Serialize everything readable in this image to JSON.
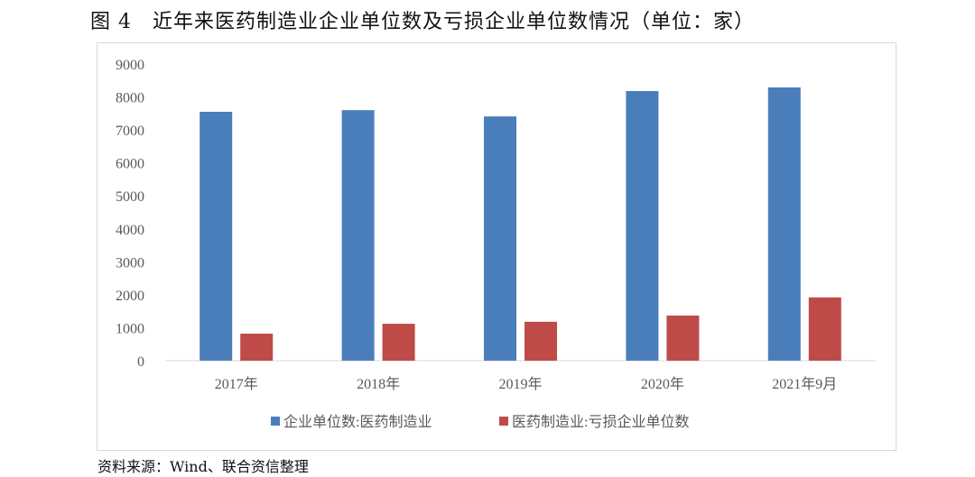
{
  "title": "图 4　近年来医药制造业企业单位数及亏损企业单位数情况（单位：家）",
  "source": "资料来源：Wind、联合资信整理",
  "chart_data": {
    "type": "bar",
    "title": "",
    "categories": [
      "2017年",
      "2018年",
      "2019年",
      "2020年",
      "2021年9月"
    ],
    "series": [
      {
        "name": "企业单位数:医药制造业",
        "color": "#4a7ebb",
        "values": [
          7550,
          7600,
          7410,
          8180,
          8290
        ]
      },
      {
        "name": "医药制造业:亏损企业单位数",
        "color": "#be4b48",
        "values": [
          820,
          1120,
          1180,
          1370,
          1920
        ]
      }
    ],
    "ylim": [
      0,
      9000
    ],
    "yticks": [
      0,
      1000,
      2000,
      3000,
      4000,
      5000,
      6000,
      7000,
      8000,
      9000
    ],
    "grid": false,
    "legend": "bottom"
  }
}
